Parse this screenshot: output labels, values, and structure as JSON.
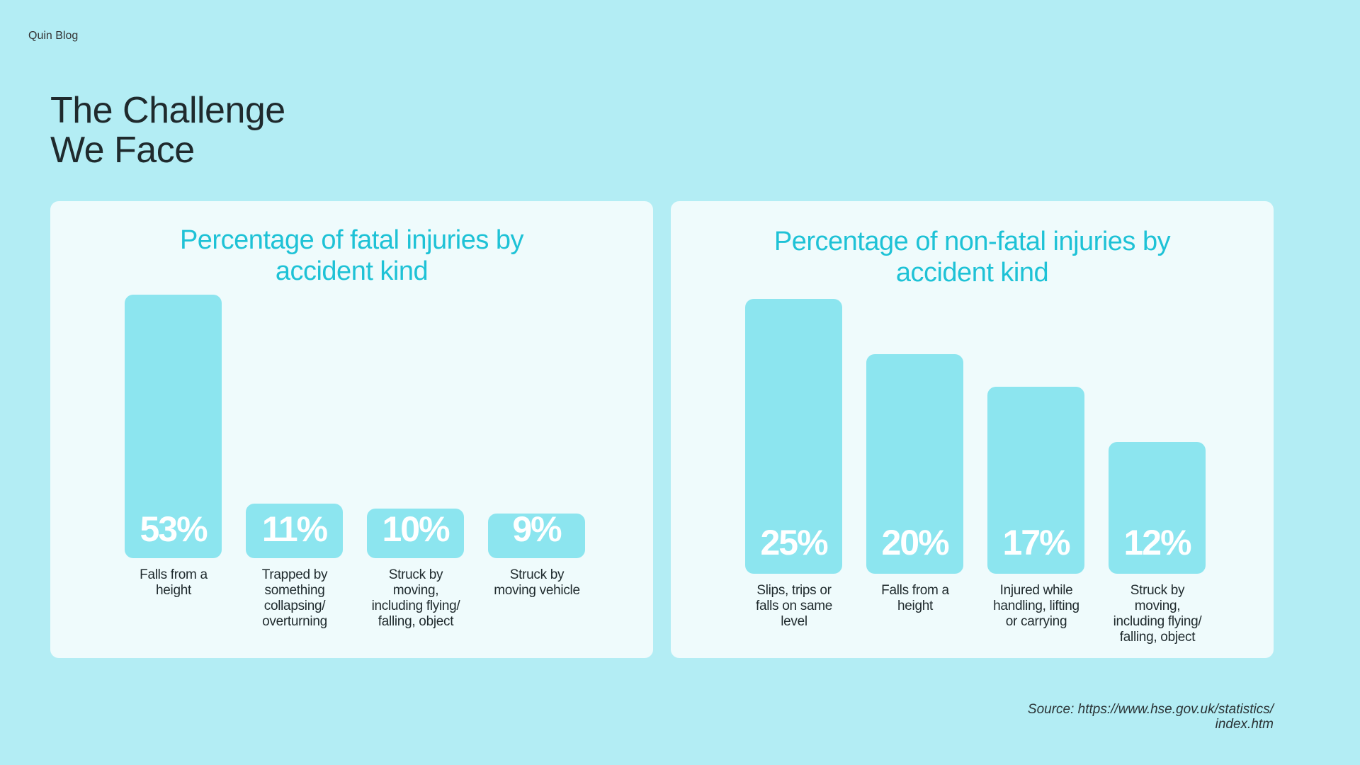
{
  "brand": "Quin Blog",
  "title": "The Challenge\nWe  Face",
  "source_line1": "Source: https://www.hse.gov.uk/statistics/",
  "source_line2": "index.htm",
  "colors": {
    "background": "#b3edf4",
    "card": "#effbfc",
    "bar": "#8ce5ef",
    "accent": "#1ec2d6"
  },
  "chart_data": [
    {
      "type": "bar",
      "title": "Percentage of fatal injuries by accident kind",
      "title_lines": [
        "Percentage of fatal injuries by",
        "accident kind"
      ],
      "categories": [
        "Falls from a height",
        "Trapped by something collapsing/ overturning",
        "Struck by moving, including flying/ falling, object",
        "Struck by moving vehicle"
      ],
      "category_lines": [
        [
          "Falls from a",
          "height"
        ],
        [
          "Trapped by",
          "something",
          "collapsing/",
          "overturning"
        ],
        [
          "Struck by",
          "moving,",
          "including flying/",
          "falling, object"
        ],
        [
          "Struck by",
          "moving vehicle"
        ]
      ],
      "values": [
        53,
        11,
        10,
        9
      ],
      "value_labels": [
        "53%",
        "11%",
        "10%",
        "9%"
      ],
      "unit": "%"
    },
    {
      "type": "bar",
      "title": "Percentage of non-fatal injuries by accident kind",
      "title_lines": [
        "Percentage of non-fatal injuries by",
        "accident kind"
      ],
      "categories": [
        "Slips, trips or falls on same level",
        "Falls from a height",
        "Injured while handling, lifting or carrying",
        "Struck by moving, including flying/ falling, object"
      ],
      "category_lines": [
        [
          "Slips, trips or",
          "falls on same",
          "level"
        ],
        [
          "Falls from a",
          "height"
        ],
        [
          "Injured while",
          "handling, lifting",
          "or carrying"
        ],
        [
          "Struck by",
          "moving,",
          "including flying/",
          "falling, object"
        ]
      ],
      "values": [
        25,
        20,
        17,
        12
      ],
      "value_labels": [
        "25%",
        "20%",
        "17%",
        "12%"
      ],
      "unit": "%"
    }
  ]
}
